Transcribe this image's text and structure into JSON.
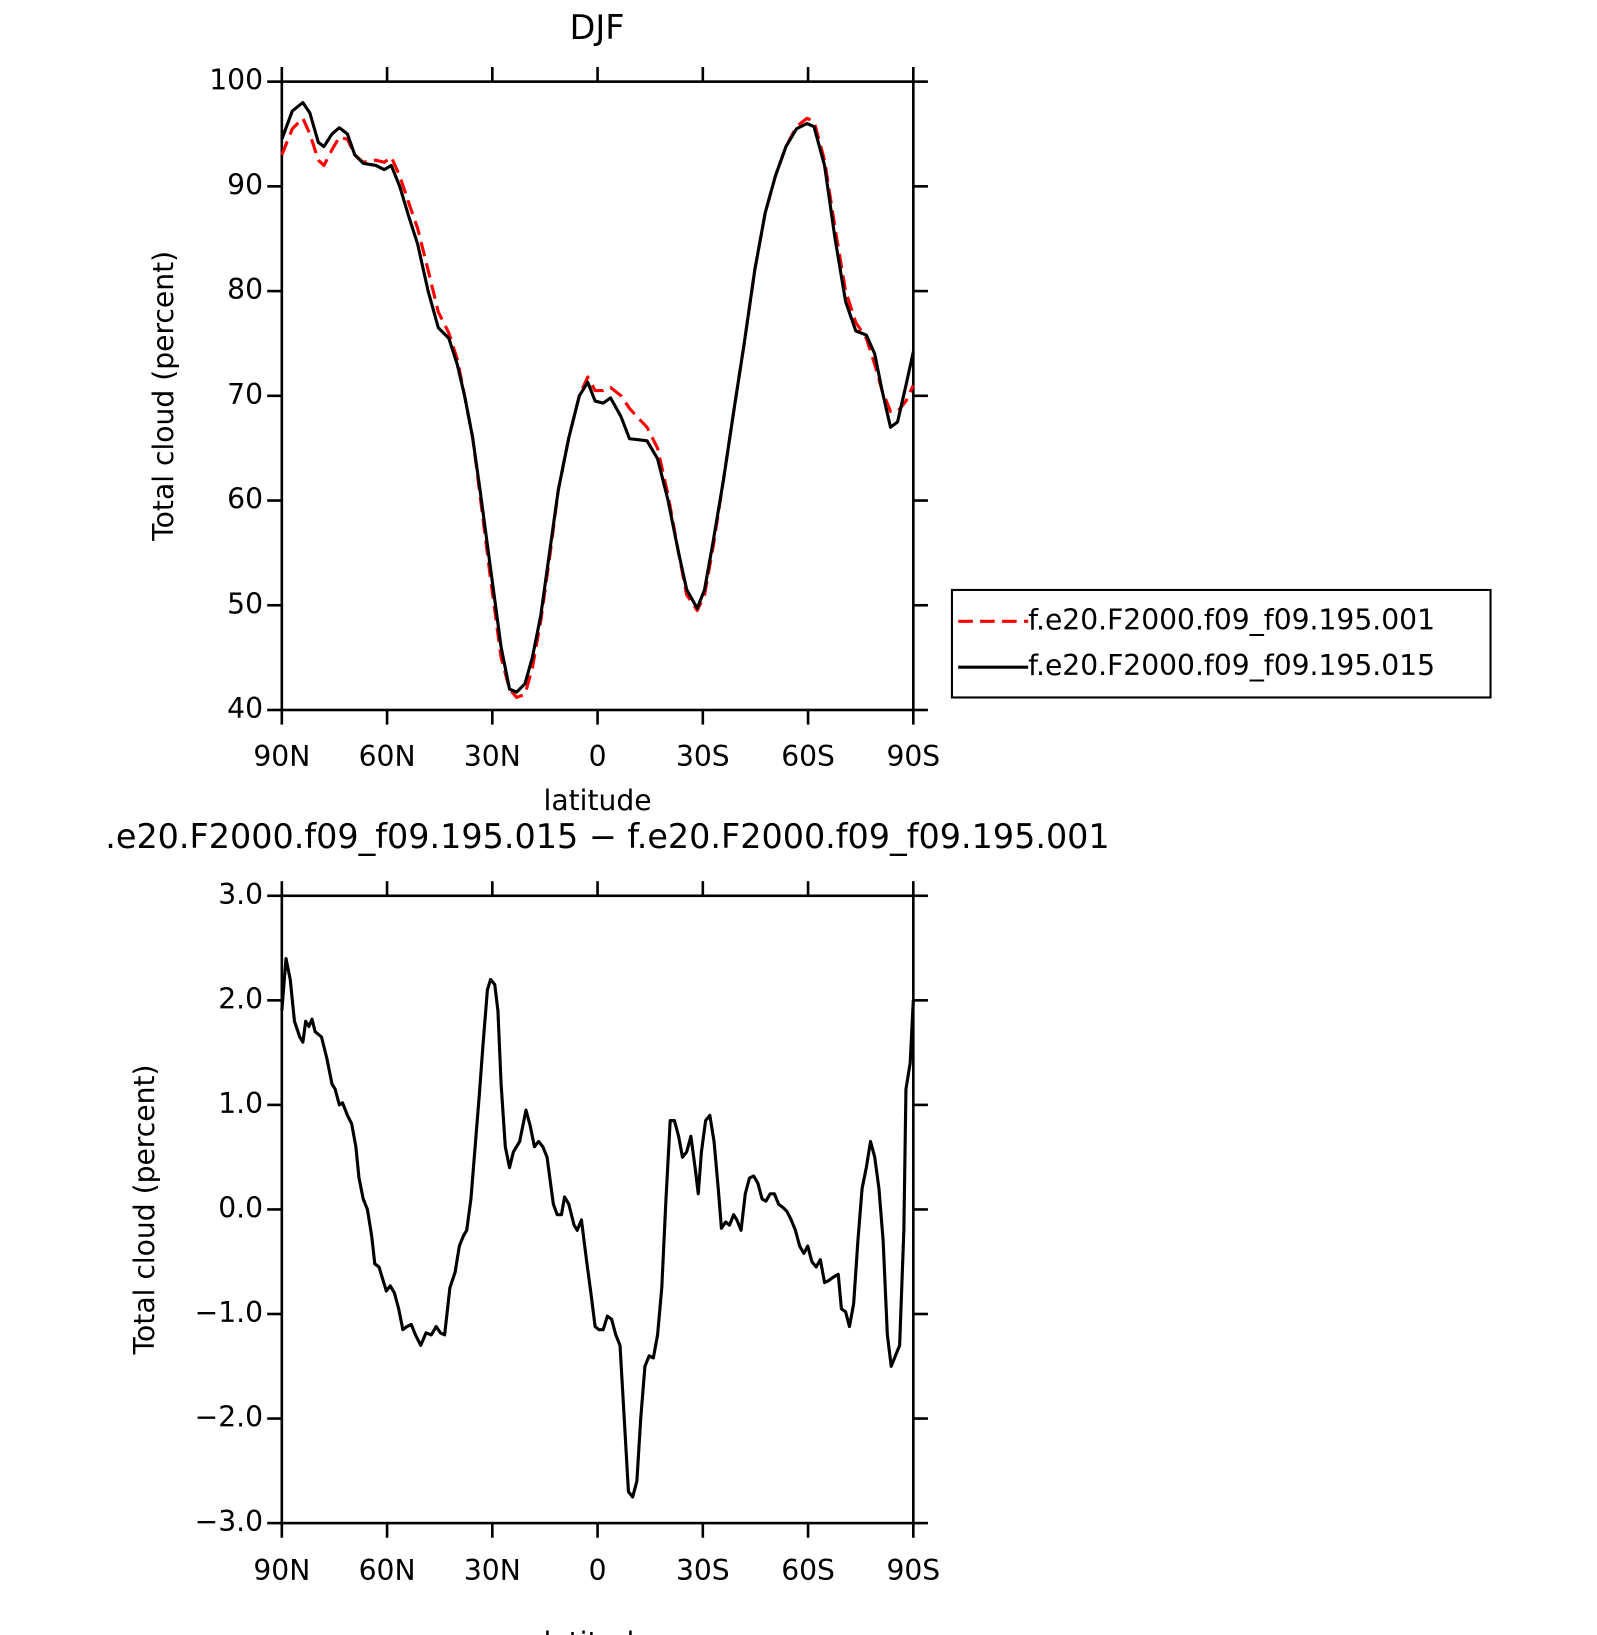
{
  "chart_data": [
    {
      "type": "line",
      "title": "DJF",
      "xlabel": "latitude",
      "ylabel": "Total cloud (percent)",
      "xlim": [
        90,
        -90
      ],
      "ylim": [
        40,
        100
      ],
      "xticks": [
        {
          "value": 90,
          "label": "90N"
        },
        {
          "value": 60,
          "label": "60N"
        },
        {
          "value": 30,
          "label": "30N"
        },
        0,
        {
          "value": -30,
          "label": "30S"
        },
        {
          "value": -60,
          "label": "60S"
        },
        {
          "value": -90,
          "label": "90S"
        }
      ],
      "yticks": [
        40,
        50,
        60,
        70,
        80,
        90,
        100
      ],
      "legend": "outside-right-bottom",
      "x": [
        90,
        87,
        84,
        82,
        79.6,
        78,
        75.7,
        73.6,
        71.3,
        69.2,
        66.8,
        63.2,
        60.8,
        58.8,
        56.4,
        53.7,
        51.3,
        48.3,
        45.4,
        42.4,
        40,
        37.9,
        35.6,
        33.5,
        30.5,
        27.5,
        25.1,
        23.1,
        20.7,
        18.6,
        16.2,
        13.5,
        11.2,
        8.2,
        5.2,
        2.8,
        0.7,
        -1.6,
        -3.7,
        -6.7,
        -9.1,
        -11.8,
        -14.1,
        -17.1,
        -20.1,
        -23.1,
        -25.4,
        -28.4,
        -30.5,
        -32.9,
        -35.9,
        -38.8,
        -41.8,
        -44.8,
        -47.8,
        -50.7,
        -53.7,
        -56.7,
        -59.7,
        -61.7,
        -64.7,
        -67.7,
        -70.7,
        -73.6,
        -76.6,
        -79,
        -81.1,
        -83.5,
        -85.5,
        -87.9,
        -90
      ],
      "series": [
        {
          "name": "f.e20.F2000.f09_f09.195.001",
          "color": "#ff0000",
          "dashed": true,
          "values": [
            93,
            95.5,
            96.5,
            95,
            92.5,
            92,
            93.5,
            94.7,
            94.5,
            93,
            92.3,
            92.5,
            92.3,
            92.8,
            91,
            88.3,
            86,
            82,
            78,
            76,
            73.5,
            70,
            66,
            60.5,
            52.5,
            45,
            42,
            41.2,
            41.5,
            44,
            48.5,
            55,
            61,
            66,
            70,
            71.8,
            70.5,
            70.5,
            70.8,
            70,
            68.8,
            67.8,
            67,
            65,
            60.5,
            55,
            51,
            49.5,
            51,
            55.5,
            62,
            68.5,
            75,
            82,
            87.5,
            91,
            93.8,
            95.7,
            96.5,
            96.2,
            92.5,
            86,
            80,
            77,
            75.5,
            73,
            70.5,
            68.5,
            68.5,
            69.5,
            71
          ]
        },
        {
          "name": "f.e20.F2000.f09_f09.195.015",
          "color": "#000000",
          "dashed": false,
          "values": [
            94.5,
            97.2,
            98,
            97,
            94.2,
            93.8,
            95,
            95.6,
            95,
            93,
            92.2,
            92,
            91.6,
            92,
            90,
            87,
            84.5,
            80,
            76.5,
            75.5,
            73,
            70,
            66,
            61,
            53.5,
            46,
            42,
            41.7,
            42.5,
            45,
            49,
            55.5,
            61,
            66,
            70,
            71.3,
            69.5,
            69.3,
            69.8,
            68,
            65.9,
            65.8,
            65.7,
            64,
            60,
            55,
            51.5,
            49.7,
            51.5,
            56,
            62,
            68.5,
            75,
            82,
            87.5,
            91,
            93.8,
            95.5,
            96,
            95.7,
            92,
            85,
            79,
            76.2,
            75.8,
            74,
            70.5,
            67,
            67.5,
            71,
            74.2
          ]
        }
      ]
    },
    {
      "type": "line",
      "title": ".e20.F2000.f09_f09.195.015 − f.e20.F2000.f09_f09.195.001",
      "xlabel": "latitude",
      "ylabel": "Total cloud (percent)",
      "xlim": [
        90,
        -90
      ],
      "ylim": [
        -3,
        3
      ],
      "xticks": [
        {
          "value": 90,
          "label": "90N"
        },
        {
          "value": 60,
          "label": "60N"
        },
        {
          "value": 30,
          "label": "30N"
        },
        0,
        {
          "value": -30,
          "label": "30S"
        },
        {
          "value": -60,
          "label": "60S"
        },
        {
          "value": -90,
          "label": "90S"
        }
      ],
      "yticks": [
        {
          "value": -3,
          "label": "−3.0"
        },
        {
          "value": -2,
          "label": "−2.0"
        },
        {
          "value": -1,
          "label": "−1.0"
        },
        {
          "value": 0,
          "label": "0.0"
        },
        {
          "value": 1,
          "label": "1.0"
        },
        {
          "value": 2,
          "label": "2.0"
        },
        {
          "value": 3,
          "label": "3.0"
        }
      ],
      "x": [
        90,
        88.8,
        87.6,
        86.4,
        84.9,
        84.0,
        83.2,
        82.3,
        81.4,
        80.5,
        78.7,
        77.2,
        75.7,
        74.8,
        73.6,
        72.7,
        71.3,
        70.1,
        68.9,
        68.0,
        66.8,
        65.6,
        64.4,
        63.5,
        62.3,
        61.4,
        60.2,
        59.1,
        57.9,
        56.7,
        55.5,
        54.3,
        53.1,
        51.9,
        50.4,
        48.9,
        47.4,
        46.0,
        44.8,
        43.6,
        42.1,
        40.6,
        39.4,
        38.2,
        37.3,
        36.1,
        34.9,
        33.7,
        32.6,
        31.4,
        30.5,
        29.3,
        28.4,
        27.5,
        26.3,
        25.1,
        24.0,
        22.2,
        20.4,
        19.2,
        18.0,
        16.8,
        15.6,
        14.4,
        12.6,
        11.5,
        10.3,
        9.4,
        8.2,
        6.7,
        5.8,
        4.6,
        3.1,
        1.9,
        0.7,
        -0.4,
        -1.6,
        -2.8,
        -4.0,
        -5.2,
        -6.4,
        -7.6,
        -8.8,
        -10.0,
        -11.2,
        -12.3,
        -13.5,
        -14.7,
        -15.9,
        -17.1,
        -18.3,
        -19.5,
        -20.7,
        -21.9,
        -23.1,
        -24.2,
        -25.4,
        -26.6,
        -27.8,
        -28.7,
        -29.6,
        -30.8,
        -32.0,
        -33.2,
        -34.4,
        -35.3,
        -36.5,
        -37.6,
        -38.8,
        -39.7,
        -40.9,
        -42.1,
        -43.3,
        -44.5,
        -45.7,
        -46.9,
        -48.0,
        -49.2,
        -50.4,
        -51.6,
        -52.8,
        -54.0,
        -55.2,
        -56.4,
        -57.6,
        -58.8,
        -59.9,
        -61.1,
        -62.3,
        -63.5,
        -64.7,
        -65.9,
        -67.1,
        -68.6,
        -69.5,
        -70.7,
        -71.8,
        -73.0,
        -74.2,
        -75.4,
        -76.6,
        -77.8,
        -79.0,
        -80.2,
        -81.4,
        -82.6,
        -83.7,
        -84.9,
        -86.1,
        -87.3,
        -87.9,
        -89.1,
        -90
      ],
      "series": [
        {
          "color": "#000000",
          "dashed": false,
          "values": [
            1.9,
            2.4,
            2.2,
            1.8,
            1.65,
            1.6,
            1.8,
            1.75,
            1.82,
            1.7,
            1.65,
            1.45,
            1.2,
            1.15,
            1.0,
            1.02,
            0.9,
            0.82,
            0.6,
            0.3,
            0.1,
            0.0,
            -0.25,
            -0.52,
            -0.55,
            -0.65,
            -0.78,
            -0.73,
            -0.8,
            -0.95,
            -1.15,
            -1.12,
            -1.1,
            -1.2,
            -1.3,
            -1.18,
            -1.2,
            -1.12,
            -1.18,
            -1.2,
            -0.75,
            -0.6,
            -0.35,
            -0.25,
            -0.2,
            0.1,
            0.6,
            1.1,
            1.6,
            2.1,
            2.2,
            2.15,
            1.9,
            1.2,
            0.6,
            0.4,
            0.55,
            0.65,
            0.95,
            0.8,
            0.6,
            0.65,
            0.6,
            0.5,
            0.05,
            -0.05,
            -0.05,
            0.12,
            0.05,
            -0.15,
            -0.2,
            -0.1,
            -0.5,
            -0.8,
            -1.12,
            -1.15,
            -1.15,
            -1.02,
            -1.05,
            -1.2,
            -1.3,
            -2.0,
            -2.7,
            -2.75,
            -2.6,
            -2.0,
            -1.5,
            -1.4,
            -1.42,
            -1.2,
            -0.75,
            0.1,
            0.85,
            0.85,
            0.7,
            0.5,
            0.55,
            0.7,
            0.4,
            0.15,
            0.55,
            0.85,
            0.9,
            0.65,
            0.2,
            -0.18,
            -0.12,
            -0.15,
            -0.05,
            -0.1,
            -0.2,
            0.15,
            0.3,
            0.32,
            0.25,
            0.1,
            0.08,
            0.15,
            0.15,
            0.05,
            0.02,
            -0.02,
            -0.1,
            -0.2,
            -0.35,
            -0.42,
            -0.35,
            -0.5,
            -0.55,
            -0.48,
            -0.7,
            -0.68,
            -0.65,
            -0.62,
            -0.95,
            -0.98,
            -1.12,
            -0.9,
            -0.3,
            0.2,
            0.4,
            0.65,
            0.5,
            0.2,
            -0.3,
            -1.2,
            -1.5,
            -1.4,
            -1.3,
            -0.2,
            1.15,
            1.4,
            2.0
          ]
        }
      ]
    }
  ]
}
